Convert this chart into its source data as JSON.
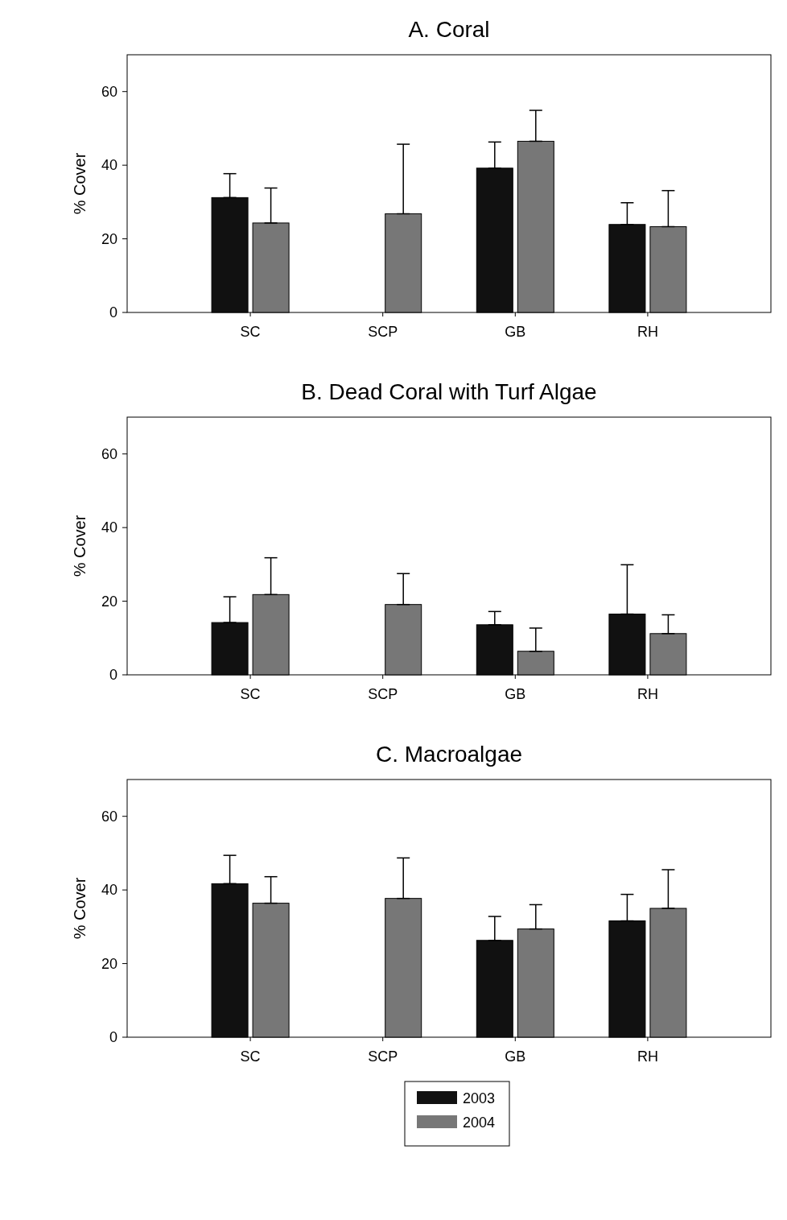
{
  "chart_data": [
    {
      "type": "bar",
      "title": "A. Coral",
      "ylabel": "% Cover",
      "categories": [
        "SC",
        "SCP",
        "GB",
        "RH"
      ],
      "ylim": [
        0,
        70
      ],
      "yticks": [
        0,
        20,
        40,
        60
      ],
      "legend": false,
      "series": [
        {
          "color": "#111111",
          "values": [
            31.2,
            null,
            39.2,
            23.9
          ],
          "errors": [
            [
              31.2,
              37.7
            ],
            null,
            [
              39.2,
              46.3
            ],
            [
              23.9,
              29.8
            ]
          ]
        },
        {
          "color": "#777777",
          "values": [
            24.3,
            26.8,
            46.5,
            23.3
          ],
          "errors": [
            [
              24.3,
              33.8
            ],
            [
              26.8,
              45.7
            ],
            [
              46.5,
              54.9
            ],
            [
              23.3,
              33.1
            ]
          ]
        }
      ]
    },
    {
      "type": "bar",
      "title": "B. Dead Coral with Turf Algae",
      "ylabel": "% Cover",
      "categories": [
        "SC",
        "SCP",
        "GB",
        "RH"
      ],
      "ylim": [
        0,
        70
      ],
      "yticks": [
        0,
        20,
        40,
        60
      ],
      "legend": false,
      "series": [
        {
          "color": "#111111",
          "values": [
            14.2,
            null,
            13.6,
            16.5
          ],
          "errors": [
            [
              14.2,
              21.2
            ],
            null,
            [
              13.6,
              17.2
            ],
            [
              16.5,
              29.9
            ]
          ]
        },
        {
          "color": "#777777",
          "values": [
            21.8,
            19.1,
            6.4,
            11.2
          ],
          "errors": [
            [
              21.8,
              31.8
            ],
            [
              19.1,
              27.5
            ],
            [
              6.4,
              12.7
            ],
            [
              11.2,
              16.3
            ]
          ]
        }
      ]
    },
    {
      "type": "bar",
      "title": "C. Macroalgae",
      "ylabel": "% Cover",
      "categories": [
        "SC",
        "SCP",
        "GB",
        "RH"
      ],
      "ylim": [
        0,
        70
      ],
      "yticks": [
        0,
        20,
        40,
        60
      ],
      "legend": "bottom",
      "series": [
        {
          "name": "2003",
          "color": "#111111",
          "values": [
            41.7,
            null,
            26.3,
            31.6
          ],
          "errors": [
            [
              41.7,
              49.4
            ],
            null,
            [
              26.3,
              32.8
            ],
            [
              31.6,
              38.8
            ]
          ]
        },
        {
          "name": "2004",
          "color": "#777777",
          "values": [
            36.4,
            37.7,
            29.4,
            35.0
          ],
          "errors": [
            [
              36.4,
              43.6
            ],
            [
              37.7,
              48.7
            ],
            [
              29.4,
              36.0
            ],
            [
              35.0,
              45.5
            ]
          ]
        }
      ]
    }
  ]
}
